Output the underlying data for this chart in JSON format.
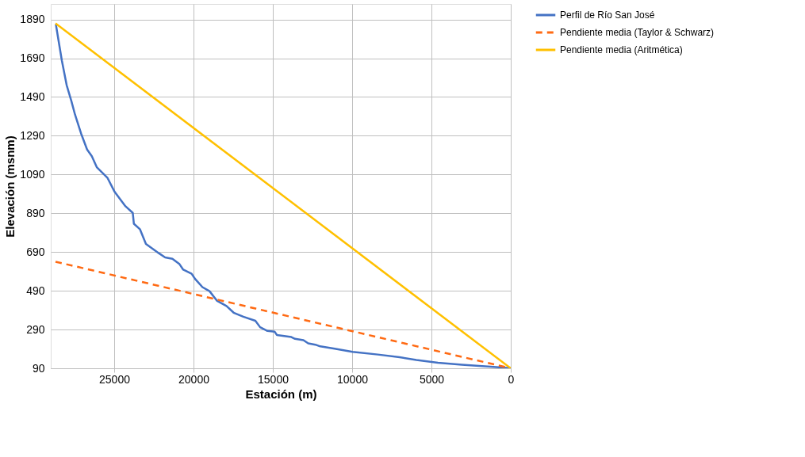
{
  "chart_data": {
    "type": "line",
    "xlabel": "Estación (m)",
    "ylabel": "Elevación (msnm)",
    "xlim": [
      29000,
      0
    ],
    "xticks": [
      25000,
      20000,
      15000,
      10000,
      5000,
      0
    ],
    "ylim": [
      90,
      1970
    ],
    "yticks": [
      90,
      290,
      490,
      690,
      890,
      1090,
      1290,
      1490,
      1690,
      1890
    ],
    "grid": true,
    "legend": "right",
    "series": [
      {
        "name": "Perfil de Río San José",
        "color": "#4472c4",
        "line_style": "solid",
        "x": [
          28680,
          28300,
          28000,
          27700,
          27470,
          27090,
          26710,
          26410,
          26100,
          25420,
          24970,
          24290,
          23830,
          23760,
          23380,
          23000,
          22170,
          21790,
          21330,
          20880,
          20650,
          20120,
          19890,
          19440,
          18990,
          18530,
          17920,
          17470,
          16860,
          16100,
          15800,
          15340,
          14890,
          14740,
          13830,
          13600,
          13070,
          12770,
          12320,
          12010,
          11100,
          9970,
          8380,
          7010,
          5950,
          4590,
          3080,
          1260,
          45,
          0
        ],
        "values": [
          1866,
          1678,
          1552,
          1469,
          1399,
          1302,
          1219,
          1184,
          1128,
          1072,
          1000,
          926,
          892,
          836,
          808,
          732,
          683,
          662,
          655,
          627,
          599,
          578,
          550,
          509,
          488,
          439,
          411,
          377,
          356,
          335,
          302,
          283,
          279,
          262,
          251,
          242,
          235,
          219,
          212,
          203,
          191,
          175,
          161,
          147,
          133,
          119,
          108,
          98,
          91,
          90
        ]
      },
      {
        "name": "Pendiente media (Taylor & Schwarz)",
        "color": "#ff6a13",
        "line_style": "dashed",
        "x": [
          28700,
          0
        ],
        "values": [
          640,
          90
        ]
      },
      {
        "name": "Pendiente media (Aritmética)",
        "color": "#ffc000",
        "line_style": "solid",
        "x": [
          28700,
          0
        ],
        "values": [
          1870,
          90
        ]
      }
    ]
  }
}
